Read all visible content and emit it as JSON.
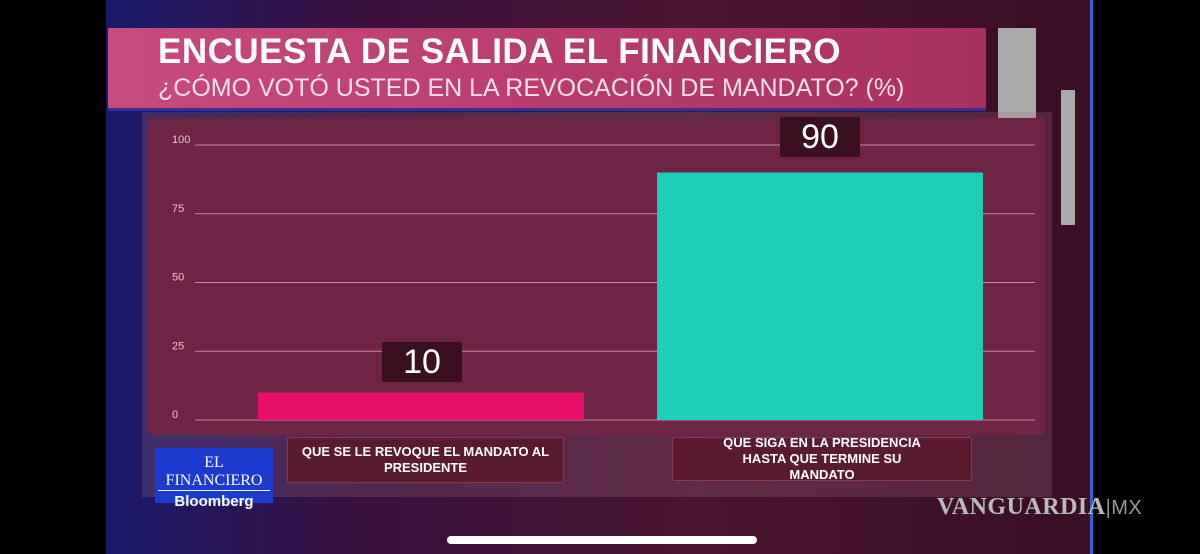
{
  "header": {
    "title": "ENCUESTA DE SALIDA EL FINANCIERO",
    "subtitle": "¿CÓMO VOTÓ USTED EN LA REVOCACIÓN DE MANDATO?  (%)"
  },
  "logo": {
    "line1": "EL FINANCIERO",
    "line2": "Bloomberg"
  },
  "watermark": {
    "brand": "VANGUARDIA",
    "suffix": "|MX"
  },
  "chart_data": {
    "type": "bar",
    "title": "ENCUESTA DE SALIDA EL FINANCIERO",
    "subtitle": "¿CÓMO VOTÓ USTED EN LA REVOCACIÓN DE MANDATO?  (%)",
    "categories": [
      "QUE SE LE REVOQUE EL MANDATO AL PRESIDENTE",
      "QUE SIGA EN LA PRESIDENCIA HASTA QUE TERMINE SU MANDATO"
    ],
    "values": [
      10,
      90
    ],
    "value_labels": [
      "10",
      "90"
    ],
    "colors": [
      "#e8106a",
      "#1dcfb8"
    ],
    "yticks": [
      "0",
      "25",
      "50",
      "75",
      "100"
    ],
    "ylim": [
      0,
      100
    ],
    "grid": true
  }
}
